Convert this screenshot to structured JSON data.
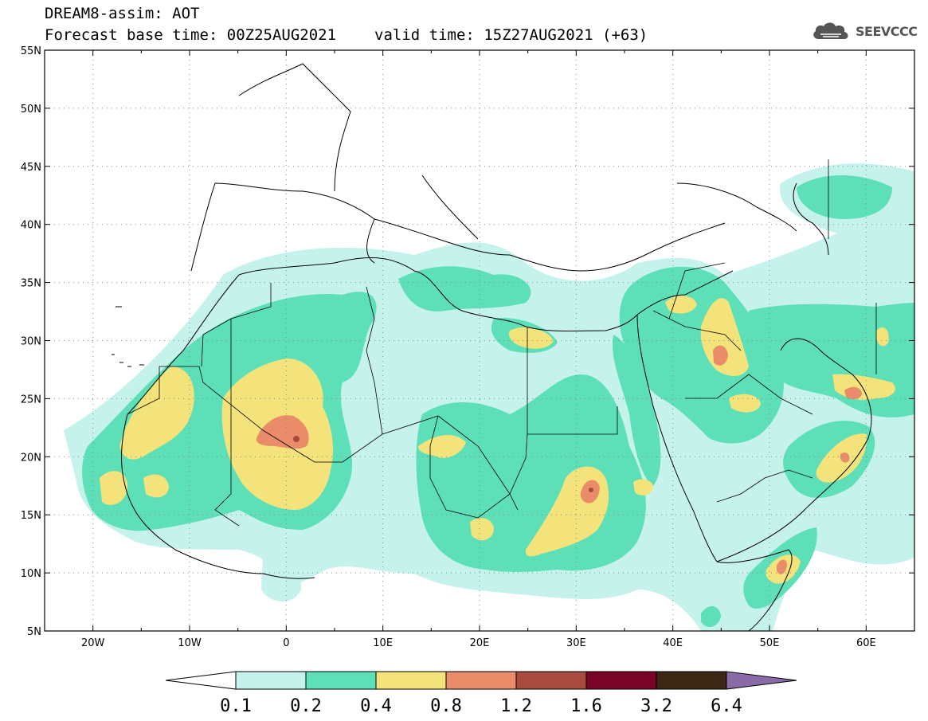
{
  "title": {
    "model": "DREAM8-assim: AOT",
    "base_time": "Forecast base time: 00Z25AUG2021",
    "valid_time": "valid time: 15Z27AUG2021 (+63)"
  },
  "logo": {
    "text": "SEEVCCC",
    "icon": "cloud-icon"
  },
  "map": {
    "lon_range": [
      -25,
      65
    ],
    "lat_range": [
      5,
      55
    ],
    "graticule": "dotted",
    "colors": {
      "0.1-0.2": "#c6f2ec",
      "0.2-0.4": "#5de0b8",
      "0.4-0.8": "#f4e37a",
      "0.8-1.2": "#ea8c69",
      "1.2-1.6": "#a64b3d",
      "1.6-3.2": "#7a0428",
      "3.2-6.4": "#3b2714",
      ">6.4": "#8b6aa8"
    },
    "lon_ticks": [
      "20W",
      "10W",
      "0",
      "10E",
      "20E",
      "30E",
      "40E",
      "50E",
      "60E"
    ],
    "lat_ticks": [
      "5N",
      "10N",
      "15N",
      "20N",
      "25N",
      "30N",
      "35N",
      "40N",
      "45N",
      "50N",
      "55N"
    ]
  },
  "colorbar": {
    "labels": [
      "0.1",
      "0.2",
      "0.4",
      "0.8",
      "1.2",
      "1.6",
      "3.2",
      "6.4"
    ],
    "colors": [
      "#c6f2ec",
      "#5de0b8",
      "#f4e37a",
      "#ea8c69",
      "#a64b3d",
      "#7a0428",
      "#3b2714"
    ],
    "under_color": "#ffffff",
    "over_color": "#8b6aa8"
  }
}
